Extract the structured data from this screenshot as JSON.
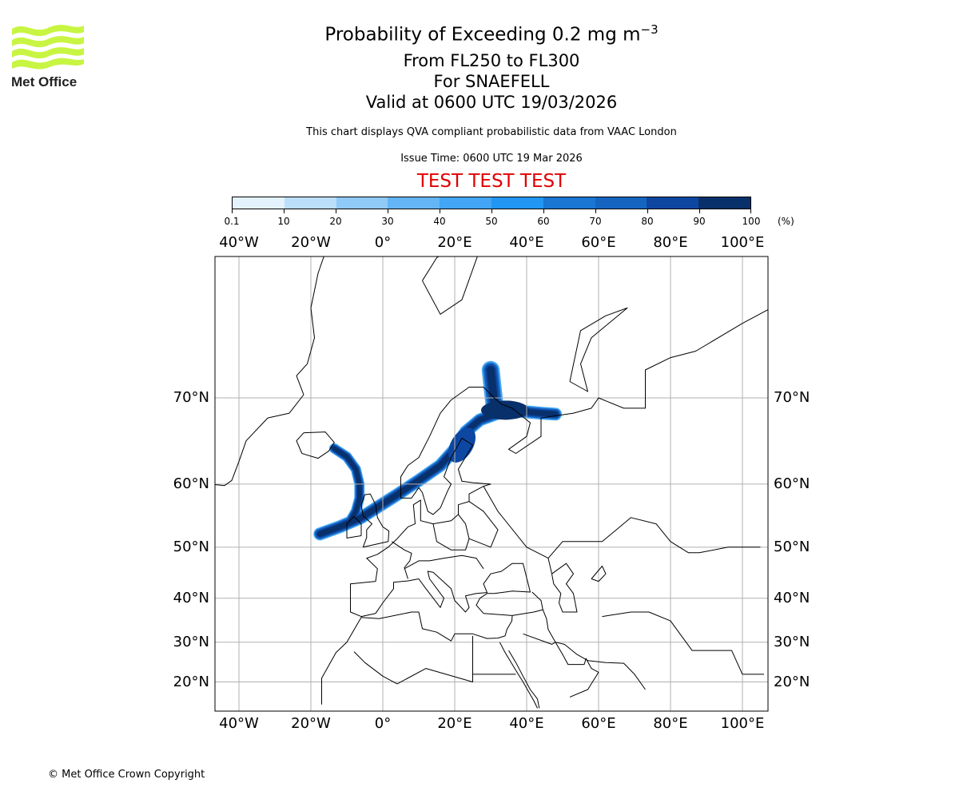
{
  "logo": {
    "text": "Met Office",
    "color": "#c8f542"
  },
  "header": {
    "title_main": "Probability of Exceeding 0.2 mg m",
    "title_exponent": "−3",
    "title_levels": "From FL250 to FL300",
    "title_volcano": "For SNAEFELL",
    "title_valid": "Valid at 0600 UTC 19/03/2026",
    "subtitle": "This chart displays QVA compliant probabilistic data from VAAC London",
    "issue_time": "Issue Time: 0600 UTC 19 Mar 2026",
    "test_banner": "TEST TEST TEST",
    "test_color": "#e00000"
  },
  "colorbar": {
    "labels": [
      "0.1",
      "10",
      "20",
      "30",
      "40",
      "50",
      "60",
      "70",
      "80",
      "90",
      "100"
    ],
    "unit": "(%)",
    "colors": [
      "#e3f2fd",
      "#bbdefb",
      "#90caf9",
      "#64b5f6",
      "#42a5f5",
      "#2196f3",
      "#1976d2",
      "#1565c0",
      "#0d47a1",
      "#08306b"
    ]
  },
  "chart_data": {
    "type": "heatmap",
    "title": "Probability of Exceeding 0.2 mg m−3",
    "projection": "Mercator",
    "lon_range": [
      -47,
      107
    ],
    "lat_range": [
      15,
      80
    ],
    "lon_ticks": [
      "40°W",
      "20°W",
      "0°",
      "20°E",
      "40°E",
      "60°E",
      "80°E",
      "100°E"
    ],
    "lat_ticks": [
      "70°N",
      "60°N",
      "50°N",
      "40°N",
      "30°N",
      "20°N"
    ],
    "grid": true,
    "value_levels": [
      0.1,
      10,
      20,
      30,
      40,
      50,
      60,
      70,
      80,
      90,
      100
    ],
    "value_unit": "%"
  },
  "footer": {
    "copyright": "© Met Office Crown Copyright"
  }
}
